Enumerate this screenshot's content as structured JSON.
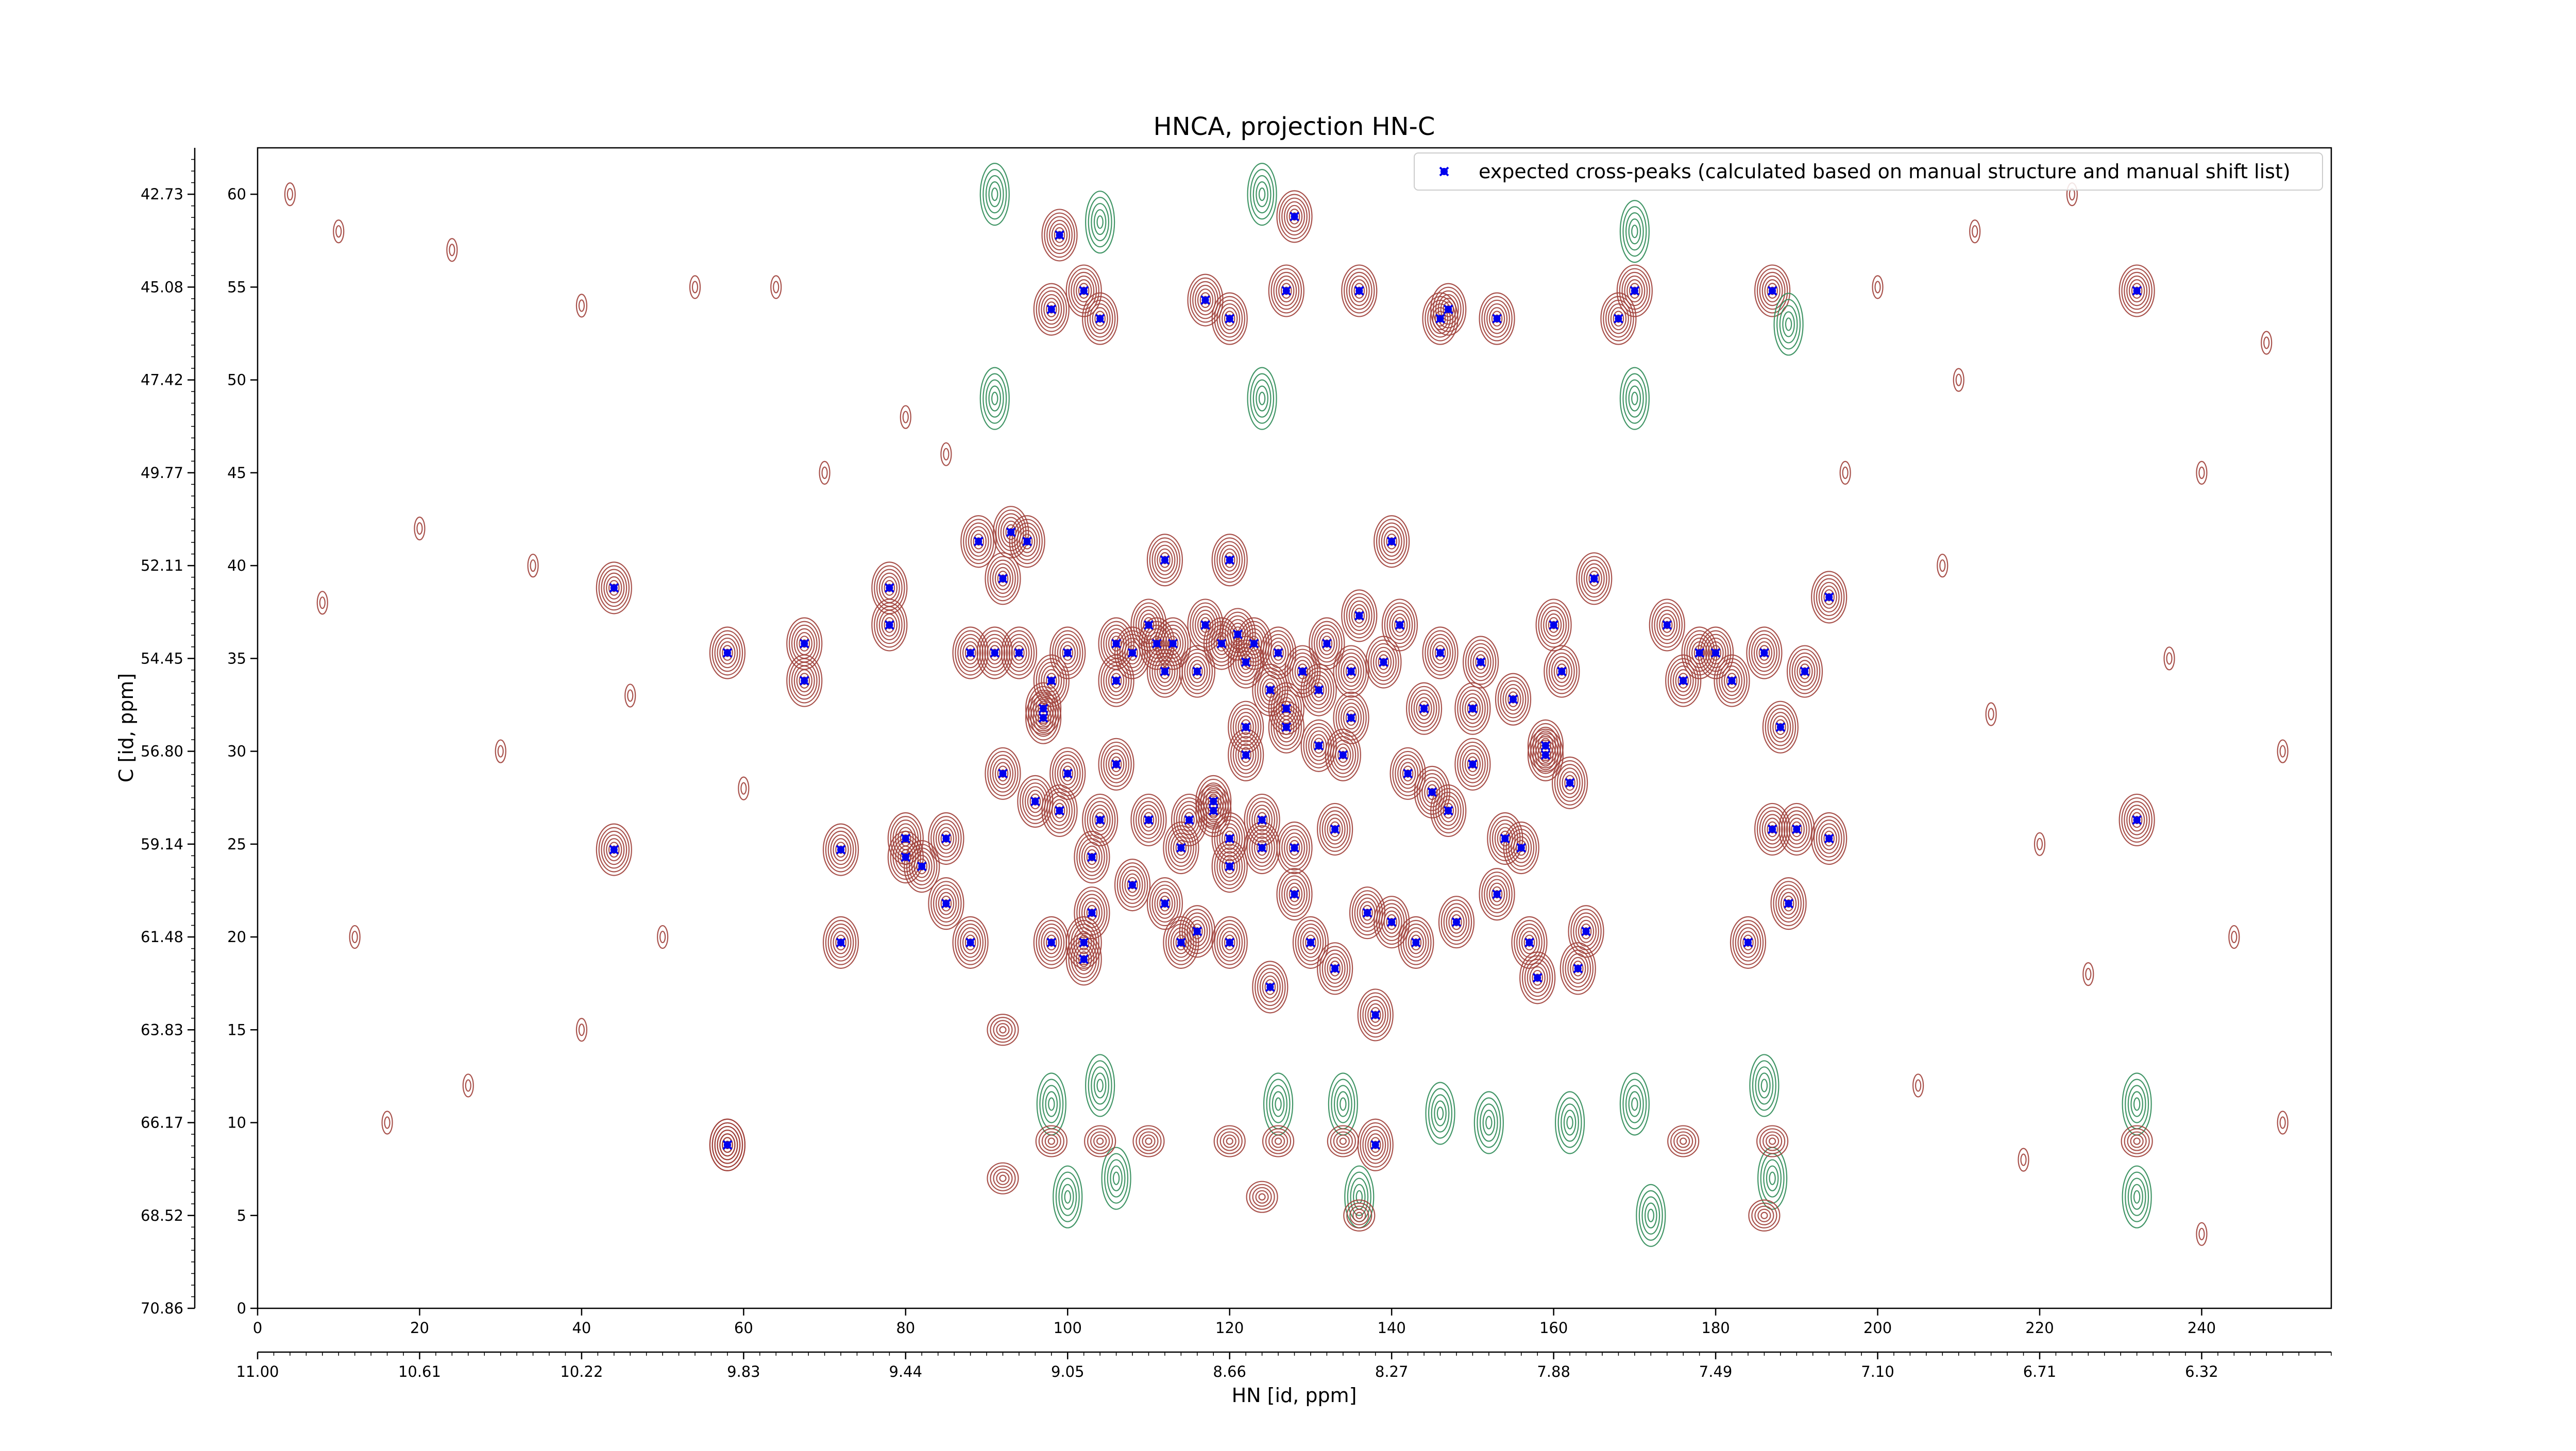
{
  "chart_data": {
    "type": "scatter",
    "title": "HNCA, projection HN-C",
    "xlabel": "HN [id, ppm]",
    "ylabel": "C [id, ppm]",
    "x_index_ticks": [
      "0",
      "20",
      "40",
      "60",
      "80",
      "100",
      "120",
      "140",
      "160",
      "180",
      "200",
      "220",
      "240"
    ],
    "x_ppm_ticks": [
      "11.00",
      "10.61",
      "10.22",
      "9.83",
      "9.44",
      "9.05",
      "8.66",
      "8.27",
      "7.88",
      "7.49",
      "7.10",
      "6.71",
      "6.32"
    ],
    "y_index_ticks": [
      "0",
      "5",
      "10",
      "15",
      "20",
      "25",
      "30",
      "35",
      "40",
      "45",
      "50",
      "55",
      "60"
    ],
    "y_ppm_ticks": [
      "70.86",
      "68.52",
      "66.17",
      "63.83",
      "61.48",
      "59.14",
      "56.80",
      "54.45",
      "52.11",
      "49.77",
      "47.42",
      "45.08",
      "42.73"
    ],
    "xlim": [
      0,
      256
    ],
    "ylim": [
      0,
      62.5
    ],
    "legend_position": "top-right",
    "colors": {
      "positive_contour": "#a0403a",
      "negative_contour": "#2e8b57",
      "peak_marker": "#0000ee"
    },
    "series": [
      {
        "name": "expected cross-peaks (calculated based on manual structure and manual shift list)",
        "points": [
          [
            44,
            38.8
          ],
          [
            44,
            24.7
          ],
          [
            58,
            35.3
          ],
          [
            58,
            8.8
          ],
          [
            67.5,
            35.8
          ],
          [
            67.5,
            33.8
          ],
          [
            72,
            24.7
          ],
          [
            72,
            19.7
          ],
          [
            78,
            38.8
          ],
          [
            78,
            36.8
          ],
          [
            80,
            25.3
          ],
          [
            80,
            24.3
          ],
          [
            82,
            23.8
          ],
          [
            85,
            25.3
          ],
          [
            85,
            21.8
          ],
          [
            88,
            19.7
          ],
          [
            88,
            35.3
          ],
          [
            89,
            41.3
          ],
          [
            91,
            35.3
          ],
          [
            92,
            28.8
          ],
          [
            92,
            39.3
          ],
          [
            93,
            41.8
          ],
          [
            94,
            35.3
          ],
          [
            95,
            41.3
          ],
          [
            96,
            27.3
          ],
          [
            97,
            31.8
          ],
          [
            97,
            32.3
          ],
          [
            98,
            33.8
          ],
          [
            98,
            19.7
          ],
          [
            99,
            26.8
          ],
          [
            100,
            28.8
          ],
          [
            100,
            35.3
          ],
          [
            102,
            18.8
          ],
          [
            102,
            19.7
          ],
          [
            103,
            24.3
          ],
          [
            103,
            21.3
          ],
          [
            104,
            26.3
          ],
          [
            106,
            29.3
          ],
          [
            106,
            33.8
          ],
          [
            106,
            35.8
          ],
          [
            108,
            22.8
          ],
          [
            108,
            35.3
          ],
          [
            110,
            36.8
          ],
          [
            110,
            26.3
          ],
          [
            111,
            35.8
          ],
          [
            112,
            34.3
          ],
          [
            112,
            21.8
          ],
          [
            113,
            35.8
          ],
          [
            114,
            19.7
          ],
          [
            114,
            24.8
          ],
          [
            115,
            26.3
          ],
          [
            116,
            20.3
          ],
          [
            116,
            34.3
          ],
          [
            117,
            36.8
          ],
          [
            118,
            26.8
          ],
          [
            118,
            27.3
          ],
          [
            119,
            35.8
          ],
          [
            120,
            19.7
          ],
          [
            120,
            23.8
          ],
          [
            120,
            25.3
          ],
          [
            121,
            36.3
          ],
          [
            122,
            29.8
          ],
          [
            122,
            34.8
          ],
          [
            122,
            31.3
          ],
          [
            123,
            35.8
          ],
          [
            124,
            26.3
          ],
          [
            124,
            24.8
          ],
          [
            125,
            17.3
          ],
          [
            125,
            33.3
          ],
          [
            126,
            35.3
          ],
          [
            127,
            32.3
          ],
          [
            127,
            31.3
          ],
          [
            128,
            24.8
          ],
          [
            128,
            22.3
          ],
          [
            129,
            34.3
          ],
          [
            130,
            19.7
          ],
          [
            131,
            33.3
          ],
          [
            131,
            30.3
          ],
          [
            132,
            35.8
          ],
          [
            133,
            18.3
          ],
          [
            133,
            25.8
          ],
          [
            134,
            29.8
          ],
          [
            135,
            31.8
          ],
          [
            135,
            34.3
          ],
          [
            136,
            37.3
          ],
          [
            137,
            21.3
          ],
          [
            138,
            15.8
          ],
          [
            139,
            34.8
          ],
          [
            140,
            20.8
          ],
          [
            141,
            36.8
          ],
          [
            142,
            28.8
          ],
          [
            143,
            19.7
          ],
          [
            144,
            32.3
          ],
          [
            145,
            27.8
          ],
          [
            146,
            35.3
          ],
          [
            147,
            26.8
          ],
          [
            148,
            20.8
          ],
          [
            150,
            29.3
          ],
          [
            150,
            32.3
          ],
          [
            151,
            34.8
          ],
          [
            153,
            22.3
          ],
          [
            154,
            25.3
          ],
          [
            155,
            32.8
          ],
          [
            156,
            24.8
          ],
          [
            157,
            19.7
          ],
          [
            158,
            17.8
          ],
          [
            159,
            30.3
          ],
          [
            159,
            29.8
          ],
          [
            160,
            36.8
          ],
          [
            161,
            34.3
          ],
          [
            162,
            28.3
          ],
          [
            163,
            18.3
          ],
          [
            164,
            20.3
          ],
          [
            165,
            39.3
          ],
          [
            174,
            36.8
          ],
          [
            176,
            33.8
          ],
          [
            178,
            35.3
          ],
          [
            180,
            35.3
          ],
          [
            182,
            33.8
          ],
          [
            184,
            19.7
          ],
          [
            186,
            35.3
          ],
          [
            187,
            25.8
          ],
          [
            188,
            31.3
          ],
          [
            189,
            21.8
          ],
          [
            190,
            25.8
          ],
          [
            191,
            34.3
          ],
          [
            194,
            38.3
          ],
          [
            194,
            25.3
          ],
          [
            58,
            8.8
          ],
          [
            99,
            57.8
          ],
          [
            104,
            53.3
          ],
          [
            117,
            54.3
          ],
          [
            120,
            53.3
          ],
          [
            127,
            54.8
          ],
          [
            128,
            58.8
          ],
          [
            136,
            54.8
          ],
          [
            146,
            53.3
          ],
          [
            147,
            53.8
          ],
          [
            153,
            53.3
          ],
          [
            168,
            53.3
          ],
          [
            170,
            54.8
          ],
          [
            187,
            54.8
          ],
          [
            232,
            54.8
          ],
          [
            232,
            26.3
          ],
          [
            138,
            8.8
          ],
          [
            102,
            54.8
          ],
          [
            98,
            53.8
          ],
          [
            112,
            40.3
          ],
          [
            120,
            40.3
          ],
          [
            140,
            41.3
          ]
        ]
      }
    ]
  }
}
